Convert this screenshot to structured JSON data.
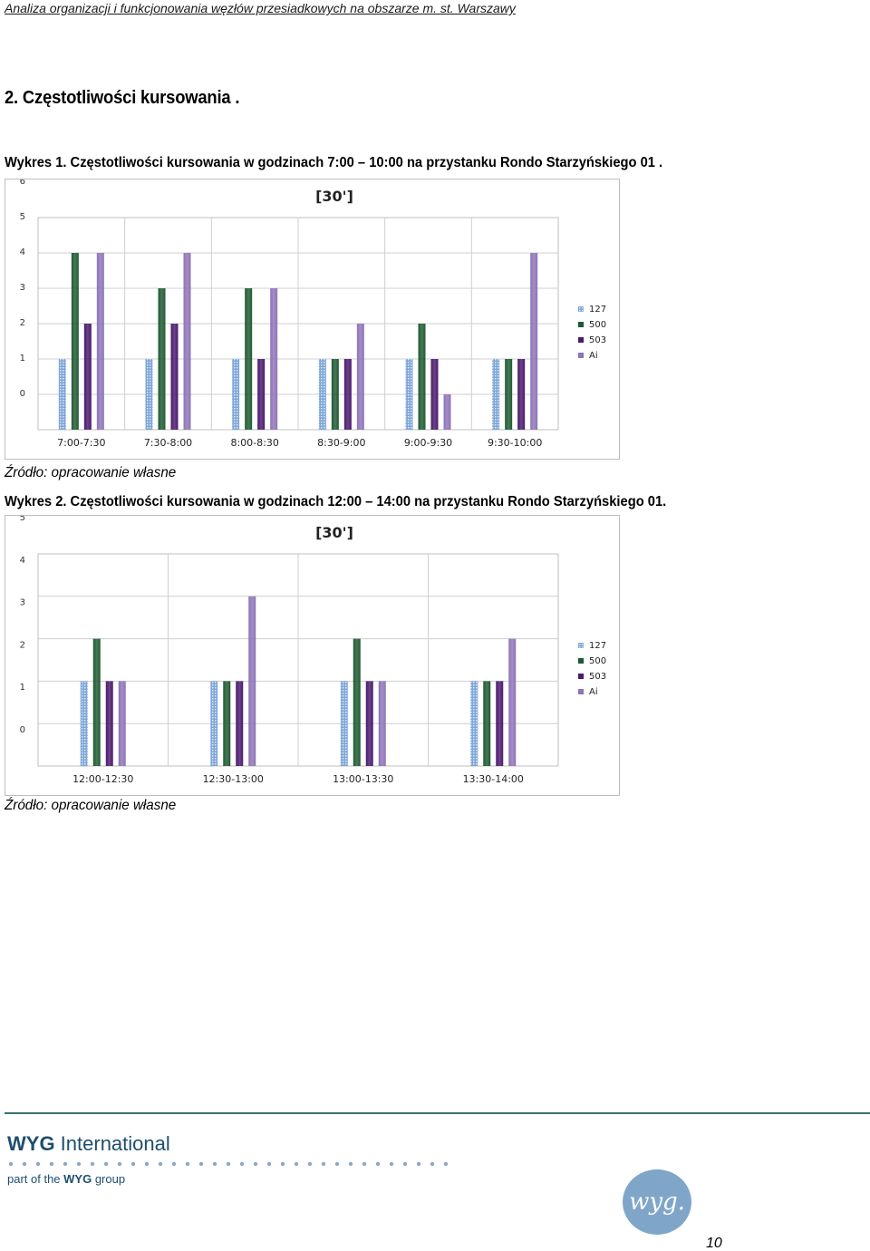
{
  "document": {
    "running_header": "Analiza organizacji i funkcjonowania węzłów przesiadkowych na obszarze m. st. Warszawy",
    "section_heading": "2.   Częstotliwości kursowania .",
    "page_number": "10"
  },
  "figures": [
    {
      "caption": "Wykres 1. Częstotliwości kursowania  w godzinach 7:00 – 10:00 na przystanku Rondo Starzyńskiego 01 .",
      "source": "Źródło: opracowanie własne"
    },
    {
      "caption": "Wykres 2. Częstotliwości kursowania  w godzinach 12:00 – 14:00 na przystanku Rondo Starzyńskiego 01.",
      "source": "Źródło: opracowanie własne"
    }
  ],
  "footer": {
    "brand_bold": "WYG",
    "brand_light": " International",
    "tagline_prefix": "part of the ",
    "tagline_bold": "WYG",
    "tagline_suffix": " group",
    "logo_text": "wyg."
  },
  "series_style": [
    {
      "name": "127",
      "color": "#7ea6d8",
      "pattern": "dotted"
    },
    {
      "name": "500",
      "color": "#1f5a32",
      "pattern": "solid"
    },
    {
      "name": "503",
      "color": "#4b1a6e",
      "pattern": "solid"
    },
    {
      "name": "Ai",
      "color": "#8e74b8",
      "pattern": "solid"
    }
  ],
  "chart_data": [
    {
      "type": "bar",
      "title": "[30']",
      "categories": [
        "7:00-7:30",
        "7:30-8:00",
        "8:00-8:30",
        "8:30-9:00",
        "9:00-9:30",
        "9:30-10:00"
      ],
      "series": [
        {
          "name": "127",
          "values": [
            2,
            2,
            2,
            2,
            2,
            2
          ]
        },
        {
          "name": "500",
          "values": [
            5,
            4,
            4,
            2,
            3,
            2
          ]
        },
        {
          "name": "503",
          "values": [
            3,
            3,
            2,
            2,
            2,
            2
          ]
        },
        {
          "name": "Ai",
          "values": [
            5,
            5,
            4,
            3,
            1,
            5
          ]
        }
      ],
      "ylim": [
        0,
        6
      ],
      "yticks": [
        0,
        1,
        2,
        3,
        4,
        5,
        6
      ],
      "grid": true,
      "legend": "right"
    },
    {
      "type": "bar",
      "title": "[30']",
      "categories": [
        "12:00-12:30",
        "12:30-13:00",
        "13:00-13:30",
        "13:30-14:00"
      ],
      "series": [
        {
          "name": "127",
          "values": [
            2,
            2,
            2,
            2
          ]
        },
        {
          "name": "500",
          "values": [
            3,
            2,
            3,
            2
          ]
        },
        {
          "name": "503",
          "values": [
            2,
            2,
            2,
            2
          ]
        },
        {
          "name": "Ai",
          "values": [
            2,
            4,
            2,
            3
          ]
        }
      ],
      "ylim": [
        0,
        5
      ],
      "yticks": [
        0,
        1,
        2,
        3,
        4,
        5
      ],
      "grid": true,
      "legend": "right"
    }
  ]
}
